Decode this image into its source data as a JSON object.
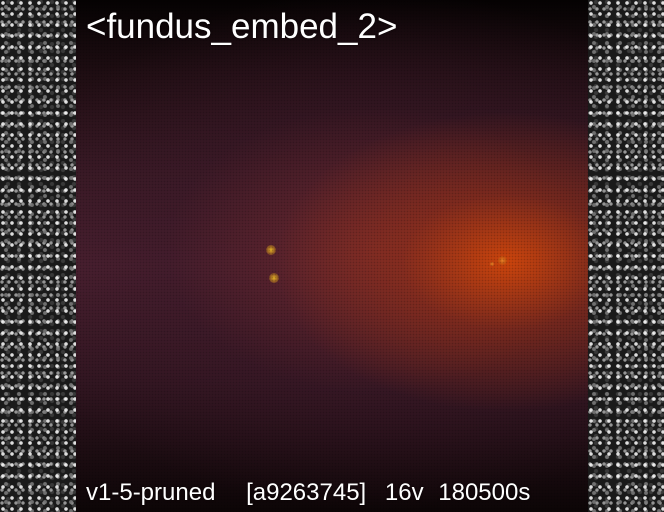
{
  "image_panel": {
    "title": "<fundus_embed_2>",
    "footer": {
      "model": "v1-5-pruned",
      "hash": "[a9263745]",
      "steps": "16v",
      "seed": "180500s"
    }
  }
}
